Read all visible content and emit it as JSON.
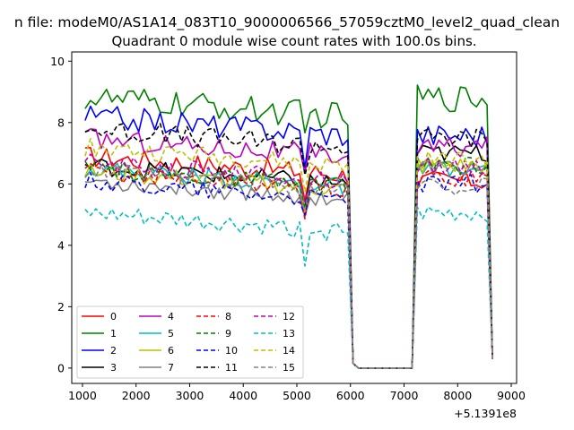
{
  "chart_data": {
    "type": "line",
    "suptitle": "n file: modeM0/AS1A14_083T10_9000006566_57059cztM0_level2_quad_clean",
    "title": "Quadrant 0 module wise count rates with 100.0s bins.",
    "xlabel": "",
    "ylabel": "",
    "x_offset_label": "+5.1391e8",
    "xlim": [
      800,
      9100
    ],
    "ylim": [
      -0.5,
      10.3
    ],
    "xticks": [
      1000,
      2000,
      3000,
      4000,
      5000,
      6000,
      7000,
      8000,
      9000
    ],
    "xtick_labels": [
      "1000",
      "2000",
      "3000",
      "4000",
      "5000",
      "6000",
      "7000",
      "8000",
      "9000"
    ],
    "yticks": [
      0,
      2,
      4,
      6,
      8,
      10
    ],
    "ytick_labels": [
      "0",
      "2",
      "4",
      "6",
      "8",
      "10"
    ],
    "legend_position": "lower-left",
    "series": [
      {
        "name": "0",
        "color": "#ff0000",
        "dash": "solid",
        "base": 6.3,
        "post": 6.1,
        "amp": 0.35
      },
      {
        "name": "1",
        "color": "#008000",
        "dash": "solid",
        "base": 8.2,
        "post": 8.8,
        "amp": 0.45
      },
      {
        "name": "2",
        "color": "#0000ff",
        "dash": "solid",
        "base": 7.6,
        "post": 7.6,
        "amp": 0.4
      },
      {
        "name": "3",
        "color": "#000000",
        "dash": "solid",
        "base": 6.0,
        "post": 7.0,
        "amp": 0.3
      },
      {
        "name": "4",
        "color": "#bf00bf",
        "dash": "solid",
        "base": 6.9,
        "post": 7.2,
        "amp": 0.35
      },
      {
        "name": "5",
        "color": "#00bfbf",
        "dash": "solid",
        "base": 5.9,
        "post": 6.4,
        "amp": 0.3
      },
      {
        "name": "6",
        "color": "#bfbf00",
        "dash": "solid",
        "base": 5.8,
        "post": 6.6,
        "amp": 0.3
      },
      {
        "name": "7",
        "color": "#808080",
        "dash": "solid",
        "base": 5.5,
        "post": 6.5,
        "amp": 0.3
      },
      {
        "name": "8",
        "color": "#ff0000",
        "dash": "dashed",
        "base": 5.8,
        "post": 6.2,
        "amp": 0.3
      },
      {
        "name": "9",
        "color": "#008000",
        "dash": "dashed",
        "base": 5.9,
        "post": 6.6,
        "amp": 0.3
      },
      {
        "name": "10",
        "color": "#0000ff",
        "dash": "dashed",
        "base": 5.5,
        "post": 6.0,
        "amp": 0.3
      },
      {
        "name": "11",
        "color": "#000000",
        "dash": "dashed",
        "base": 7.2,
        "post": 7.5,
        "amp": 0.35
      },
      {
        "name": "12",
        "color": "#bf00bf",
        "dash": "dashed",
        "base": 6.1,
        "post": 6.6,
        "amp": 0.3
      },
      {
        "name": "13",
        "color": "#00bfbf",
        "dash": "dashed",
        "base": 4.4,
        "post": 5.0,
        "amp": 0.3
      },
      {
        "name": "14",
        "color": "#bfbf00",
        "dash": "dashed",
        "base": 6.6,
        "post": 6.8,
        "amp": 0.3
      },
      {
        "name": "15",
        "color": "#808080",
        "dash": "dashed",
        "base": 5.8,
        "post": 5.9,
        "amp": 0.3
      }
    ],
    "time_x": [
      1050,
      1150,
      1250,
      1350,
      1450,
      1550,
      1650,
      1750,
      1850,
      1950,
      2050,
      2150,
      2250,
      2350,
      2450,
      2550,
      2650,
      2750,
      2850,
      2950,
      3050,
      3150,
      3250,
      3350,
      3450,
      3550,
      3650,
      3750,
      3850,
      3950,
      4050,
      4150,
      4250,
      4350,
      4450,
      4550,
      4650,
      4750,
      4850,
      4950,
      5050,
      5150,
      5250,
      5350,
      5450,
      5550,
      5650,
      5750,
      5850,
      5950,
      6050,
      6150,
      6250,
      6350,
      6450,
      6550,
      6650,
      6750,
      6850,
      6950,
      7050,
      7150,
      7250,
      7350,
      7450,
      7550,
      7650,
      7750,
      7850,
      7950,
      8050,
      8150,
      8250,
      8350,
      8450,
      8550,
      8650
    ]
  }
}
